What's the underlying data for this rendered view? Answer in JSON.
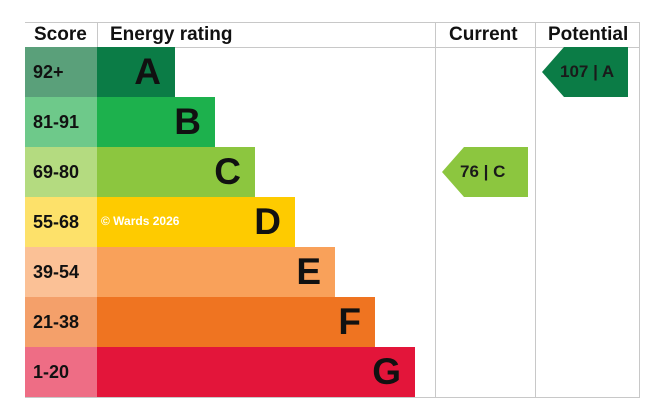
{
  "chart_data": {
    "type": "table",
    "headers": {
      "score": "Score",
      "rating": "Energy rating",
      "current": "Current",
      "potential": "Potential"
    },
    "bands": [
      {
        "range": "92+",
        "letter": "A",
        "color": "#0b7c46",
        "score_color": "#5aa07a"
      },
      {
        "range": "81-91",
        "letter": "B",
        "color": "#1db14d",
        "score_color": "#6ec98a"
      },
      {
        "range": "69-80",
        "letter": "C",
        "color": "#8cc63f",
        "score_color": "#b4db80"
      },
      {
        "range": "55-68",
        "letter": "D",
        "color": "#fecb00",
        "score_color": "#fde16a"
      },
      {
        "range": "39-54",
        "letter": "E",
        "color": "#f9a15a",
        "score_color": "#fbc196"
      },
      {
        "range": "21-38",
        "letter": "F",
        "color": "#ef7421",
        "score_color": "#f4a06a"
      },
      {
        "range": "1-20",
        "letter": "G",
        "color": "#e3153a",
        "score_color": "#ee6d85"
      }
    ],
    "current": {
      "value": 76,
      "band": "C",
      "label": "76 | C",
      "color": "#8cc63f"
    },
    "potential": {
      "value": 107,
      "band": "A",
      "label": "107 | A",
      "color": "#0b7c46"
    },
    "watermark": "© Wards 2026"
  }
}
